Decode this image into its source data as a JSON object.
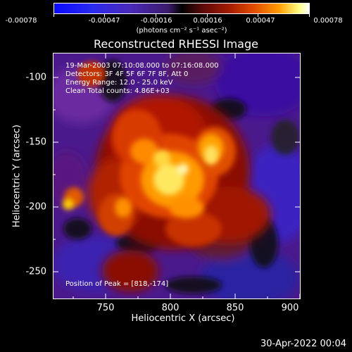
{
  "colorbar": {
    "ticks": [
      "-0.00078",
      "-0.00047",
      "-0.00016",
      "0.00016",
      "0.00047",
      "0.00078"
    ],
    "units": "(photons cm⁻² s⁻¹ asec⁻²)",
    "range": [
      -0.00078,
      0.00078
    ],
    "colors": [
      "#0a0aff",
      "#000000",
      "#ff9a00",
      "#ffffff"
    ]
  },
  "chart_data": {
    "type": "heatmap",
    "title": "Reconstructed RHESSI Image",
    "xlabel": "Heliocentric X (arcsec)",
    "ylabel": "Heliocentric Y (arcsec)",
    "xlim": [
      714,
      906
    ],
    "ylim": [
      -272,
      -82
    ],
    "xticks": [
      750,
      800,
      850,
      900
    ],
    "yticks": [
      -100,
      -150,
      -200,
      -250
    ],
    "peak": [
      818,
      -174
    ]
  },
  "annotations": {
    "time": "19-Mar-2003 07:10:08.000 to 07:16:08.000",
    "detectors": "Detectors: 3F 4F 5F 6F 7F 8F, Att 0",
    "energy": "Energy Range: 12.0 - 25.0 keV",
    "clean": "Clean     Total counts: 4.86E+03",
    "peak_text": "Position of Peak = [818,-174]"
  },
  "datestamp": "30-Apr-2022 00:04"
}
